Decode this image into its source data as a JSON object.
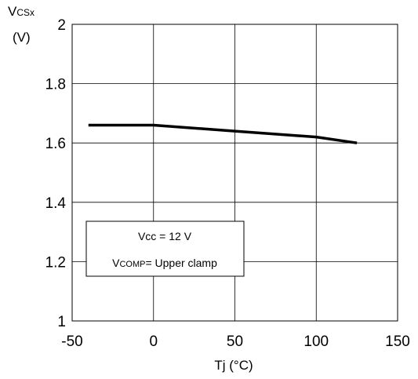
{
  "chart_data": {
    "type": "line",
    "ylabel": {
      "main": "V",
      "subscript": "CSx",
      "unit": "(V)"
    },
    "xlabel": "Tj  (°C)",
    "x_ticks": [
      "-50",
      "0",
      "50",
      "100",
      "150"
    ],
    "y_ticks": [
      "1",
      "1.2",
      "1.4",
      "1.6",
      "1.8",
      "2"
    ],
    "xlim": [
      -50,
      150
    ],
    "ylim": [
      1,
      2
    ],
    "grid": true,
    "series": [
      {
        "x": [
          -40,
          0,
          50,
          100,
          125
        ],
        "y": [
          1.66,
          1.66,
          1.64,
          1.62,
          1.6
        ],
        "color": "#000000"
      }
    ],
    "annotation": {
      "line1": "Vcc = 12 V",
      "line2_prefix": "V",
      "line2_subscript": "COMP",
      "line2_suffix": "= Upper clamp"
    }
  }
}
